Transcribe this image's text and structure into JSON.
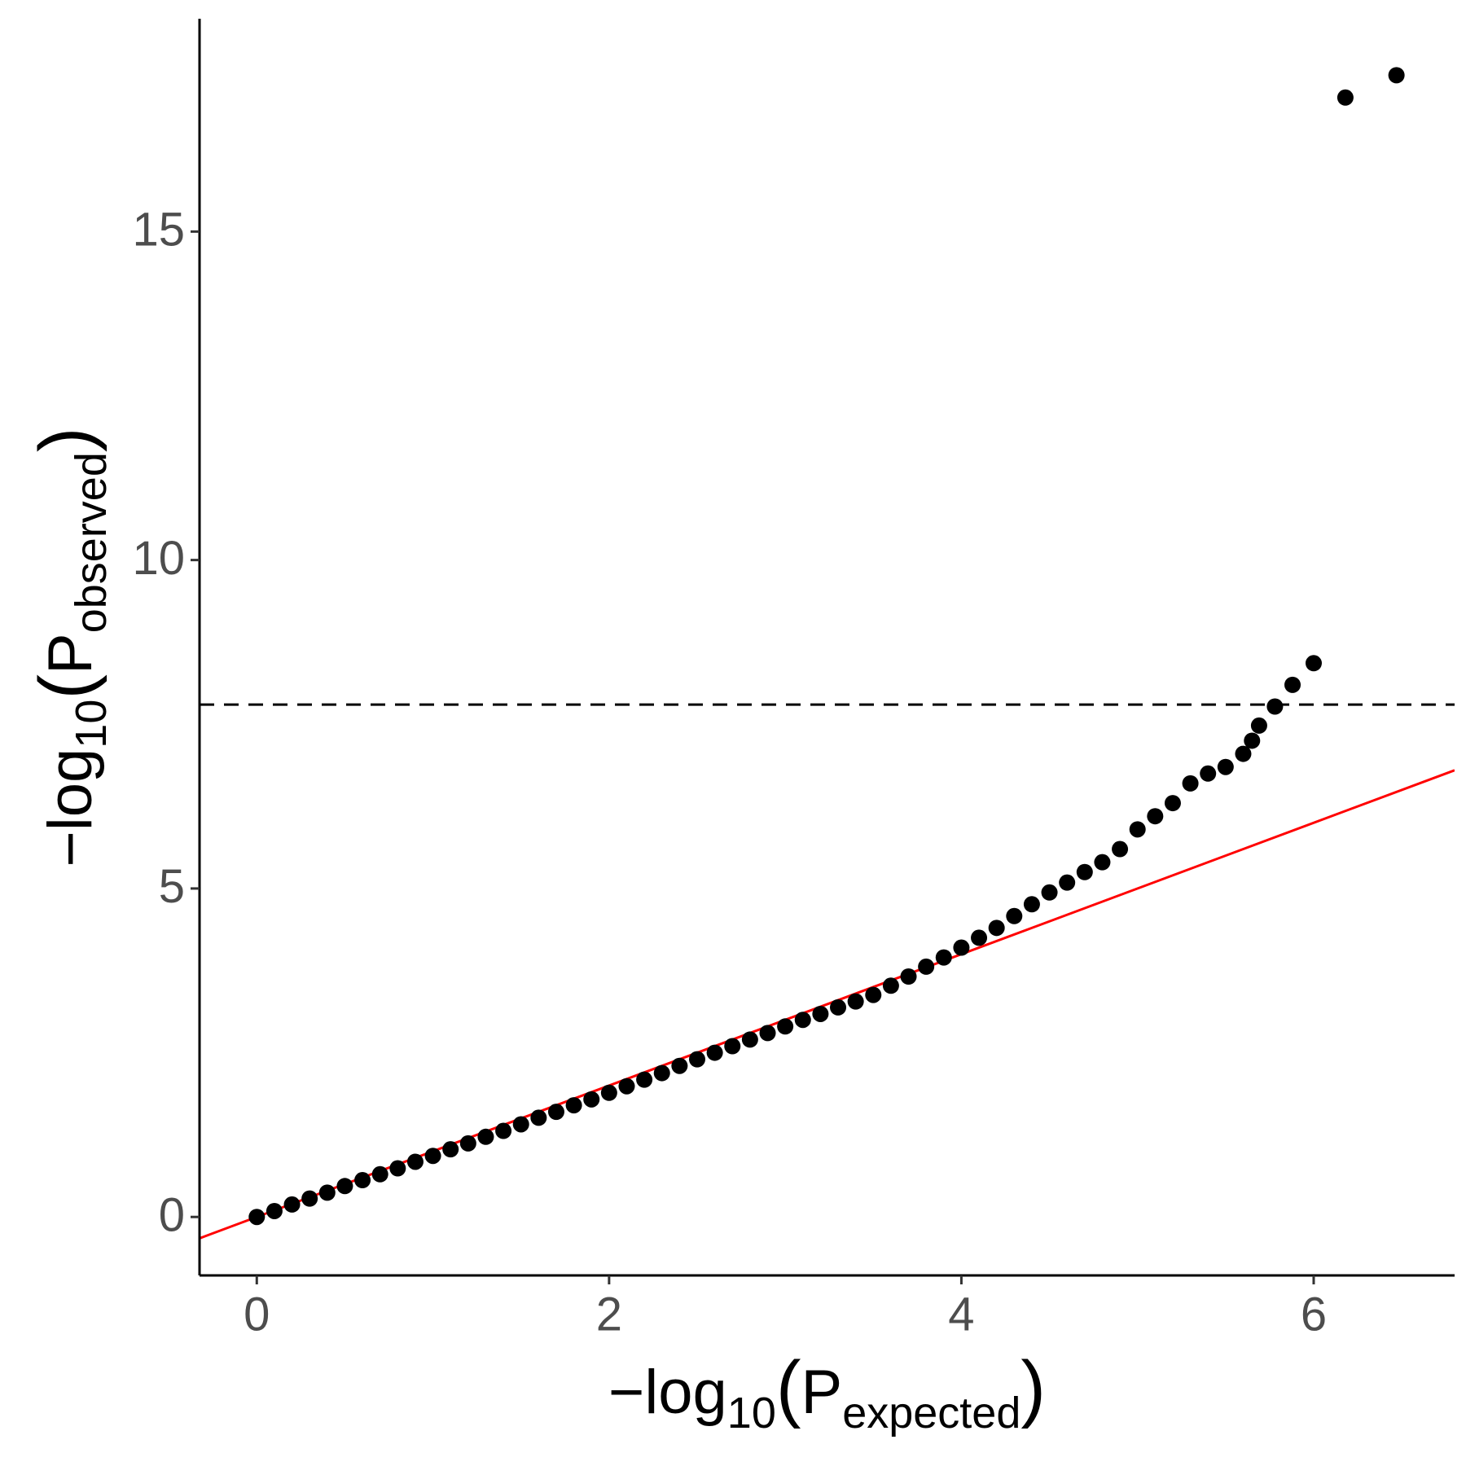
{
  "chart_data": {
    "type": "scatter",
    "x_label": [
      "−log",
      "10",
      "(",
      "P",
      "expected",
      ")"
    ],
    "y_label": [
      "−log",
      "10",
      "(",
      "P",
      "observed",
      ")"
    ],
    "x": [
      0,
      0.1,
      0.2,
      0.3,
      0.4,
      0.5,
      0.6,
      0.7,
      0.8,
      0.9,
      1.0,
      1.1,
      1.2,
      1.3,
      1.4,
      1.5,
      1.6,
      1.7,
      1.8,
      1.9,
      2.0,
      2.1,
      2.2,
      2.3,
      2.4,
      2.5,
      2.6,
      2.7,
      2.8,
      2.9,
      3.0,
      3.1,
      3.2,
      3.3,
      3.4,
      3.5,
      3.6,
      3.7,
      3.8,
      3.9,
      4.0,
      4.1,
      4.2,
      4.3,
      4.4,
      4.5,
      4.6,
      4.7,
      4.8,
      4.9,
      5.0,
      5.1,
      5.2,
      5.3,
      5.4,
      5.5,
      5.6,
      5.65,
      5.69,
      5.78,
      5.88,
      6.0,
      6.18,
      6.47
    ],
    "y": [
      0,
      0.09,
      0.19,
      0.28,
      0.37,
      0.47,
      0.56,
      0.65,
      0.74,
      0.84,
      0.93,
      1.03,
      1.12,
      1.22,
      1.31,
      1.41,
      1.51,
      1.6,
      1.7,
      1.79,
      1.89,
      1.99,
      2.09,
      2.19,
      2.3,
      2.4,
      2.5,
      2.6,
      2.7,
      2.8,
      2.9,
      3.0,
      3.09,
      3.19,
      3.28,
      3.38,
      3.52,
      3.66,
      3.81,
      3.95,
      4.1,
      4.25,
      4.4,
      4.58,
      4.76,
      4.94,
      5.09,
      5.25,
      5.4,
      5.6,
      5.9,
      6.1,
      6.3,
      6.6,
      6.75,
      6.85,
      7.05,
      7.25,
      7.48,
      7.77,
      8.1,
      8.43,
      17.04,
      17.38
    ],
    "color": "#000000",
    "reference_line": {
      "slope": 1,
      "intercept": 0,
      "color": "#ff0000"
    },
    "threshold": 7.8,
    "xlim": [
      -0.325,
      6.8
    ],
    "xticks": [
      0,
      2,
      4,
      6
    ],
    "ylim": [
      -0.89,
      18.24
    ],
    "yticks": [
      0,
      5,
      10,
      15
    ]
  }
}
